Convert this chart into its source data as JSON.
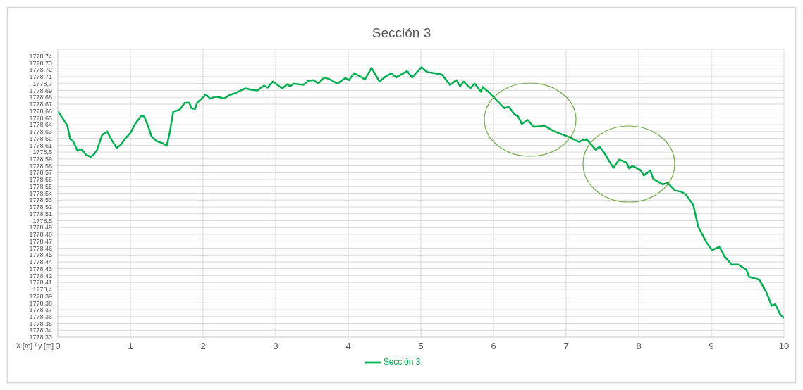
{
  "chart_data": {
    "type": "line",
    "title": "Sección 3",
    "xlabel": "X [m] / y [m]",
    "x": [
      0,
      0.13,
      0.17,
      0.21,
      0.27,
      0.33,
      0.39,
      0.45,
      0.5,
      0.54,
      0.61,
      0.68,
      0.74,
      0.81,
      0.87,
      0.93,
      1.0,
      1.07,
      1.15,
      1.19,
      1.25,
      1.29,
      1.36,
      1.44,
      1.5,
      1.54,
      1.59,
      1.68,
      1.75,
      1.81,
      1.84,
      1.89,
      1.92,
      2.0,
      2.04,
      2.1,
      2.17,
      2.23,
      2.29,
      2.36,
      2.44,
      2.5,
      2.58,
      2.67,
      2.75,
      2.84,
      2.89,
      2.96,
      3.09,
      3.16,
      3.2,
      3.25,
      3.38,
      3.45,
      3.52,
      3.59,
      3.67,
      3.75,
      3.85,
      3.96,
      4.01,
      4.08,
      4.17,
      4.23,
      4.32,
      4.43,
      4.51,
      4.59,
      4.66,
      4.74,
      4.81,
      4.88,
      5.01,
      5.08,
      5.19,
      5.29,
      5.4,
      5.49,
      5.54,
      5.59,
      5.68,
      5.74,
      5.83,
      5.85,
      5.95,
      6.05,
      6.15,
      6.21,
      6.29,
      6.34,
      6.39,
      6.47,
      6.55,
      6.71,
      6.84,
      7.04,
      7.17,
      7.28,
      7.41,
      7.46,
      7.53,
      7.65,
      7.73,
      7.83,
      7.87,
      7.91,
      8.02,
      8.07,
      8.16,
      8.2,
      8.33,
      8.4,
      8.5,
      8.59,
      8.65,
      8.75,
      8.82,
      8.94,
      9.01,
      9.11,
      9.18,
      9.28,
      9.37,
      9.48,
      9.52,
      9.66,
      9.76,
      9.83,
      9.88,
      9.95,
      10
    ],
    "series": [
      {
        "name": "Sección 3",
        "color": "#00b050",
        "values": [
          1778.66,
          1778.639,
          1778.619,
          1778.616,
          1778.602,
          1778.604,
          1778.596,
          1778.593,
          1778.597,
          1778.603,
          1778.625,
          1778.63,
          1778.618,
          1778.606,
          1778.611,
          1778.62,
          1778.628,
          1778.642,
          1778.653,
          1778.652,
          1778.636,
          1778.623,
          1778.616,
          1778.613,
          1778.609,
          1778.628,
          1778.659,
          1778.662,
          1778.672,
          1778.672,
          1778.664,
          1778.663,
          1778.672,
          1778.68,
          1778.684,
          1778.678,
          1778.681,
          1778.68,
          1778.678,
          1778.683,
          1778.686,
          1778.689,
          1778.693,
          1778.691,
          1778.69,
          1778.697,
          1778.694,
          1778.703,
          1778.693,
          1778.699,
          1778.696,
          1778.7,
          1778.698,
          1778.704,
          1778.705,
          1778.7,
          1778.709,
          1778.706,
          1778.7,
          1778.708,
          1778.705,
          1778.715,
          1778.71,
          1778.706,
          1778.723,
          1778.703,
          1778.71,
          1778.715,
          1778.709,
          1778.714,
          1778.718,
          1778.709,
          1778.724,
          1778.717,
          1778.715,
          1778.713,
          1778.698,
          1778.705,
          1778.696,
          1778.703,
          1778.693,
          1778.7,
          1778.688,
          1778.695,
          1778.686,
          1778.675,
          1778.664,
          1778.666,
          1778.655,
          1778.652,
          1778.641,
          1778.647,
          1778.637,
          1778.638,
          1778.63,
          1778.622,
          1778.615,
          1778.619,
          1778.603,
          1778.608,
          1778.598,
          1778.577,
          1778.589,
          1778.585,
          1778.576,
          1778.58,
          1778.574,
          1778.566,
          1778.573,
          1778.561,
          1778.553,
          1778.555,
          1778.544,
          1778.542,
          1778.538,
          1778.523,
          1778.491,
          1778.467,
          1778.457,
          1778.462,
          1778.448,
          1778.436,
          1778.436,
          1778.429,
          1778.418,
          1778.414,
          1778.395,
          1778.376,
          1778.378,
          1778.363,
          1778.358
        ]
      }
    ],
    "xlim": [
      0,
      10
    ],
    "xticks": [
      0,
      1,
      2,
      3,
      4,
      5,
      6,
      7,
      8,
      9,
      10
    ],
    "ylim": [
      1778.33,
      1778.75
    ],
    "yticks": [
      {
        "value": 1778.33,
        "label": "1778,33"
      },
      {
        "value": 1778.34,
        "label": "1778,34"
      },
      {
        "value": 1778.35,
        "label": "1778,35"
      },
      {
        "value": 1778.36,
        "label": "1778,36"
      },
      {
        "value": 1778.37,
        "label": "1778,37"
      },
      {
        "value": 1778.38,
        "label": "1778,38"
      },
      {
        "value": 1778.39,
        "label": "1778,39"
      },
      {
        "value": 1778.4,
        "label": "1778,4"
      },
      {
        "value": 1778.41,
        "label": "1778,41"
      },
      {
        "value": 1778.42,
        "label": "1778,42"
      },
      {
        "value": 1778.43,
        "label": "1778,43"
      },
      {
        "value": 1778.44,
        "label": "1778,44"
      },
      {
        "value": 1778.45,
        "label": "1778,45"
      },
      {
        "value": 1778.46,
        "label": "1778,46"
      },
      {
        "value": 1778.47,
        "label": "1778,47"
      },
      {
        "value": 1778.48,
        "label": "1778,48"
      },
      {
        "value": 1778.49,
        "label": "1778,49"
      },
      {
        "value": 1778.5,
        "label": "1778,5"
      },
      {
        "value": 1778.51,
        "label": "1778,51"
      },
      {
        "value": 1778.52,
        "label": "1778,52"
      },
      {
        "value": 1778.53,
        "label": "1778,53"
      },
      {
        "value": 1778.54,
        "label": "1778,54"
      },
      {
        "value": 1778.55,
        "label": "1778,55"
      },
      {
        "value": 1778.56,
        "label": "1778,56"
      },
      {
        "value": 1778.57,
        "label": "1778,57"
      },
      {
        "value": 1778.58,
        "label": "1778,58"
      },
      {
        "value": 1778.59,
        "label": "1778,59"
      },
      {
        "value": 1778.6,
        "label": "1778,6"
      },
      {
        "value": 1778.61,
        "label": "1778,61"
      },
      {
        "value": 1778.62,
        "label": "1778,62"
      },
      {
        "value": 1778.63,
        "label": "1778,63"
      },
      {
        "value": 1778.64,
        "label": "1778,64"
      },
      {
        "value": 1778.65,
        "label": "1778,65"
      },
      {
        "value": 1778.66,
        "label": "1778,66"
      },
      {
        "value": 1778.67,
        "label": "1778,67"
      },
      {
        "value": 1778.68,
        "label": "1778,68"
      },
      {
        "value": 1778.69,
        "label": "1778,69"
      },
      {
        "value": 1778.7,
        "label": "1778,7"
      },
      {
        "value": 1778.71,
        "label": "1778,71"
      },
      {
        "value": 1778.72,
        "label": "1778,72"
      },
      {
        "value": 1778.73,
        "label": "1778,73"
      },
      {
        "value": 1778.74,
        "label": "1778,74"
      }
    ],
    "grid": true,
    "legend": "bottom",
    "marker": "none",
    "line_style": "solid"
  }
}
